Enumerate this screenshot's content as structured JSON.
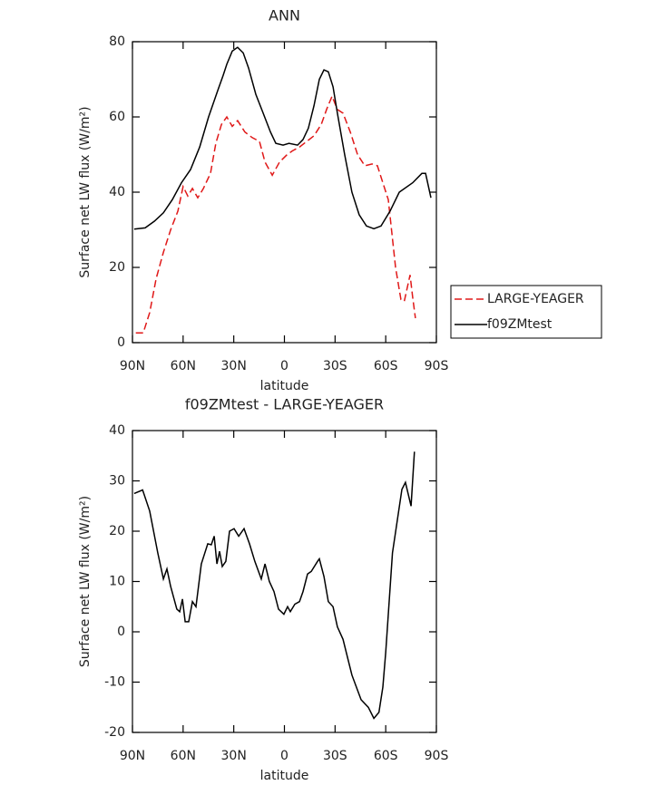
{
  "chart_data": [
    {
      "type": "line",
      "title": "ANN",
      "xlabel": "latitude",
      "ylabel": "Surface net LW flux (W/m²)",
      "xlim": [
        90,
        -90
      ],
      "ylim": [
        0,
        80
      ],
      "xticks": [
        {
          "value": 90,
          "label": "90N"
        },
        {
          "value": 60,
          "label": "60N"
        },
        {
          "value": 30,
          "label": "30N"
        },
        0,
        {
          "value": -30,
          "label": "30S"
        },
        {
          "value": -60,
          "label": "60S"
        },
        {
          "value": -90,
          "label": "90S"
        }
      ],
      "yticks": [
        0,
        20,
        40,
        60,
        80
      ],
      "legend": "right",
      "series": [
        {
          "name": "LARGE-YEAGER",
          "color": "#e01818",
          "dash": true,
          "x": [
            88,
            83.6,
            79.8,
            76,
            71.7,
            67.4,
            63.1,
            60,
            57.2,
            54.5,
            51.3,
            48,
            43.8,
            40.6,
            37.3,
            34.1,
            30.9,
            27.7,
            23.4,
            19.1,
            14.8,
            11.5,
            7.2,
            2.9,
            -1.6,
            -4.8,
            -8.9,
            -13.2,
            -17.5,
            -21.8,
            -25,
            -28.2,
            -31.4,
            -34.7,
            -39,
            -43.3,
            -47.6,
            -51.9,
            -55.1,
            -57.2,
            -61.5,
            -65.8,
            -69,
            -71,
            -74.4,
            -76,
            -77.6
          ],
          "values": [
            2.6,
            2.6,
            8,
            17,
            24,
            30,
            35,
            41.5,
            39,
            41,
            38.5,
            41,
            45,
            53,
            58,
            60,
            57.5,
            59,
            56,
            54.5,
            53.5,
            48,
            44.5,
            48,
            50,
            51,
            52,
            53.5,
            55,
            58,
            62,
            65.5,
            62,
            61,
            56,
            50,
            47,
            47.5,
            47,
            44,
            38,
            20,
            11.5,
            11,
            18,
            12,
            6.5
          ]
        },
        {
          "name": "f09ZMtest",
          "color": "#000000",
          "dash": false,
          "x": [
            89,
            82.5,
            77,
            71.7,
            66.4,
            61,
            55.6,
            50.2,
            44.9,
            39.5,
            36.3,
            34.1,
            30.9,
            27.7,
            24.4,
            21.2,
            16.9,
            12.6,
            8.3,
            5.1,
            0.8,
            -2.7,
            -7.8,
            -11,
            -14.2,
            -17.5,
            -20.7,
            -23.4,
            -26,
            -28.8,
            -31.4,
            -35.7,
            -40,
            -44.3,
            -48.6,
            -53,
            -57.2,
            -62.6,
            -68,
            -76,
            -81.4,
            -83.6,
            -86.8
          ],
          "values": [
            30.2,
            30.5,
            32.3,
            34.5,
            38,
            42.5,
            46,
            52,
            60,
            67,
            71,
            74,
            77.5,
            78.5,
            77,
            73,
            66,
            61,
            56,
            53,
            52.5,
            53,
            52.5,
            54,
            57,
            63,
            70,
            72.5,
            72,
            68,
            61,
            50,
            40,
            34,
            31,
            30.3,
            31,
            35,
            40,
            42.5,
            45,
            45,
            38.5
          ]
        }
      ]
    },
    {
      "type": "line",
      "title": "f09ZMtest - LARGE-YEAGER",
      "xlabel": "latitude",
      "ylabel": "Surface net LW flux (W/m²)",
      "xlim": [
        90,
        -90
      ],
      "ylim": [
        -20,
        40
      ],
      "xticks": [
        {
          "value": 90,
          "label": "90N"
        },
        {
          "value": 60,
          "label": "60N"
        },
        {
          "value": 30,
          "label": "30N"
        },
        0,
        {
          "value": -30,
          "label": "30S"
        },
        {
          "value": -60,
          "label": "60S"
        },
        {
          "value": -90,
          "label": "90S"
        }
      ],
      "yticks": [
        -20,
        -10,
        0,
        10,
        20,
        30,
        40
      ],
      "series": [
        {
          "color": "#000000",
          "dash": false,
          "x": [
            89,
            84,
            79.8,
            75,
            71.7,
            69.6,
            67.4,
            63.7,
            62,
            60.4,
            58.8,
            56.7,
            54.5,
            52.4,
            49.2,
            45.4,
            43.3,
            41.6,
            40,
            38.4,
            36.8,
            34.7,
            32.5,
            29.8,
            27.1,
            23.9,
            20.7,
            17.5,
            13.7,
            11.5,
            8.9,
            6.2,
            3.5,
            0.3,
            -1.9,
            -3.5,
            -6.2,
            -8.9,
            -11,
            -13.7,
            -15.9,
            -19.6,
            -20.7,
            -23.4,
            -26,
            -28.8,
            -31.4,
            -34.7,
            -40,
            -45.4,
            -49.7,
            -53,
            -56,
            -58.3,
            -60,
            -64,
            -69.6,
            -71.7,
            -75,
            -77
          ],
          "values": [
            27.5,
            28.2,
            24,
            15.7,
            10.5,
            12.5,
            9,
            4.5,
            4,
            6.5,
            2,
            2,
            6,
            5,
            13.5,
            17.5,
            17.3,
            19,
            13.5,
            16,
            13,
            14,
            20,
            20.5,
            19,
            20.5,
            17.5,
            14,
            10.5,
            13.5,
            10,
            8,
            4.5,
            3.5,
            5,
            4,
            5.5,
            6,
            8,
            11.5,
            12,
            14,
            14.5,
            11,
            6,
            5,
            1,
            -1.5,
            -8.6,
            -13.5,
            -15,
            -17.2,
            -16,
            -11,
            -4,
            15.7,
            28.3,
            29.7,
            25,
            35.8
          ]
        }
      ]
    }
  ]
}
